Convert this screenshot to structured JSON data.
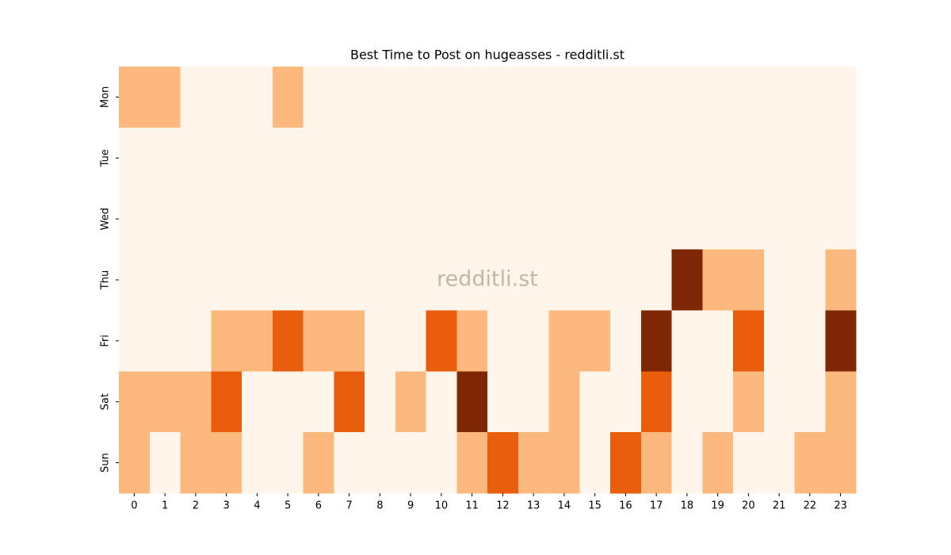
{
  "chart_data": {
    "type": "heatmap",
    "title": "Best Time to Post on hugeasses - redditli.st",
    "watermark": "redditli.st",
    "x_categories": [
      0,
      1,
      2,
      3,
      4,
      5,
      6,
      7,
      8,
      9,
      10,
      11,
      12,
      13,
      14,
      15,
      16,
      17,
      18,
      19,
      20,
      21,
      22,
      23
    ],
    "y_categories": [
      "Mon",
      "Tue",
      "Wed",
      "Thu",
      "Fri",
      "Sat",
      "Sun"
    ],
    "colorscale": [
      "#fff5eb",
      "#fdb97d",
      "#e95e0d",
      "#7f2704"
    ],
    "values": [
      [
        1,
        1,
        0,
        0,
        0,
        1,
        0,
        0,
        0,
        0,
        0,
        0,
        0,
        0,
        0,
        0,
        0,
        0,
        0,
        0,
        0,
        0,
        0,
        0
      ],
      [
        0,
        0,
        0,
        0,
        0,
        0,
        0,
        0,
        0,
        0,
        0,
        0,
        0,
        0,
        0,
        0,
        0,
        0,
        0,
        0,
        0,
        0,
        0,
        0
      ],
      [
        0,
        0,
        0,
        0,
        0,
        0,
        0,
        0,
        0,
        0,
        0,
        0,
        0,
        0,
        0,
        0,
        0,
        0,
        0,
        0,
        0,
        0,
        0,
        0
      ],
      [
        0,
        0,
        0,
        0,
        0,
        0,
        0,
        0,
        0,
        0,
        0,
        0,
        0,
        0,
        0,
        0,
        0,
        0,
        3,
        1,
        1,
        0,
        0,
        1
      ],
      [
        0,
        0,
        0,
        1,
        1,
        2,
        1,
        1,
        0,
        0,
        2,
        1,
        0,
        0,
        1,
        1,
        0,
        3,
        0,
        0,
        2,
        0,
        0,
        3
      ],
      [
        1,
        1,
        1,
        2,
        0,
        0,
        0,
        2,
        0,
        1,
        0,
        3,
        0,
        0,
        1,
        0,
        0,
        2,
        0,
        0,
        1,
        0,
        0,
        1
      ],
      [
        1,
        0,
        1,
        1,
        0,
        0,
        1,
        0,
        0,
        0,
        0,
        1,
        2,
        1,
        1,
        0,
        2,
        1,
        0,
        1,
        0,
        0,
        1,
        1
      ]
    ]
  }
}
